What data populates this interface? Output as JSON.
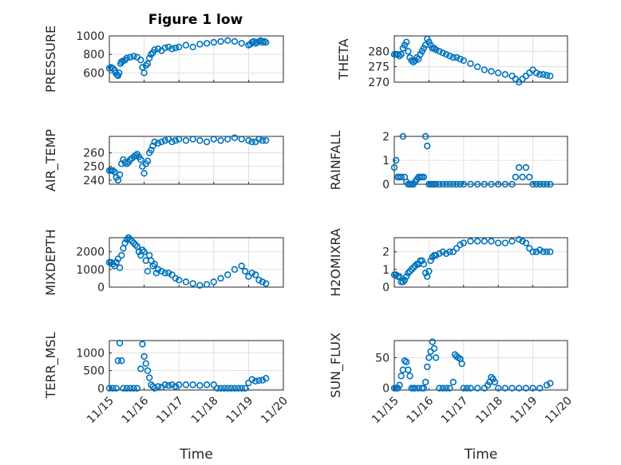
{
  "figure_title": "Figure 1 low",
  "chart_data": [
    {
      "type": "scatter",
      "ylabel": "PRESSURE",
      "xlim": [
        0,
        5
      ],
      "ylim": [
        500,
        1000
      ],
      "yticks": [
        600,
        800,
        1000
      ],
      "xticks_labels": [
        "",
        "",
        "",
        "",
        ""
      ],
      "xlabel": "",
      "x": [
        0.0,
        0.05,
        0.1,
        0.15,
        0.18,
        0.22,
        0.25,
        0.28,
        0.32,
        0.35,
        0.4,
        0.45,
        0.5,
        0.6,
        0.7,
        0.8,
        0.9,
        0.95,
        1.0,
        1.05,
        1.1,
        1.15,
        1.2,
        1.25,
        1.3,
        1.4,
        1.5,
        1.6,
        1.7,
        1.8,
        1.9,
        2.0,
        2.2,
        2.4,
        2.6,
        2.8,
        3.0,
        3.2,
        3.4,
        3.6,
        3.8,
        4.0,
        4.05,
        4.1,
        4.15,
        4.2,
        4.25,
        4.3,
        4.35,
        4.4,
        4.45,
        4.5
      ],
      "y": [
        650,
        660,
        650,
        630,
        600,
        580,
        570,
        600,
        700,
        720,
        730,
        740,
        760,
        770,
        780,
        770,
        740,
        660,
        600,
        680,
        700,
        760,
        800,
        820,
        850,
        860,
        840,
        870,
        880,
        860,
        870,
        880,
        900,
        880,
        910,
        920,
        930,
        940,
        950,
        940,
        920,
        900,
        910,
        930,
        940,
        920,
        930,
        940,
        950,
        930,
        940,
        930
      ]
    },
    {
      "type": "scatter",
      "ylabel": "THETA",
      "xlim": [
        0,
        5
      ],
      "ylim": [
        270,
        285
      ],
      "yticks": [
        270,
        275,
        280
      ],
      "xticks_labels": [
        "",
        "",
        "",
        "",
        ""
      ],
      "xlabel": "",
      "x": [
        0.0,
        0.05,
        0.1,
        0.15,
        0.2,
        0.25,
        0.3,
        0.35,
        0.4,
        0.45,
        0.5,
        0.55,
        0.6,
        0.65,
        0.7,
        0.75,
        0.8,
        0.85,
        0.9,
        0.95,
        1.0,
        1.05,
        1.1,
        1.15,
        1.2,
        1.3,
        1.4,
        1.5,
        1.6,
        1.7,
        1.8,
        1.9,
        2.0,
        2.2,
        2.4,
        2.6,
        2.8,
        3.0,
        3.2,
        3.4,
        3.5,
        3.6,
        3.7,
        3.8,
        3.9,
        4.0,
        4.1,
        4.2,
        4.3,
        4.4,
        4.5
      ],
      "y": [
        279,
        279,
        279,
        278.5,
        279,
        281,
        282,
        283,
        280,
        278,
        277,
        276.5,
        277,
        278,
        277.5,
        279,
        280,
        281,
        282,
        284,
        283,
        282,
        281,
        281,
        280.5,
        280,
        279.5,
        279,
        278.5,
        278,
        278,
        277.5,
        277,
        276,
        275,
        274,
        273.5,
        273,
        272.5,
        272,
        271,
        270,
        271,
        272,
        273,
        274,
        273,
        272.5,
        272.5,
        272.2,
        272
      ]
    },
    {
      "type": "scatter",
      "ylabel": "AIR_TEMP",
      "xlim": [
        0,
        5
      ],
      "ylim": [
        237,
        272
      ],
      "yticks": [
        240,
        250,
        260
      ],
      "xticks_labels": [
        "",
        "",
        "",
        "",
        ""
      ],
      "xlabel": "",
      "x": [
        0.0,
        0.05,
        0.1,
        0.15,
        0.2,
        0.25,
        0.3,
        0.35,
        0.4,
        0.45,
        0.5,
        0.55,
        0.6,
        0.65,
        0.7,
        0.75,
        0.8,
        0.85,
        0.9,
        0.95,
        1.0,
        1.05,
        1.1,
        1.15,
        1.2,
        1.25,
        1.3,
        1.4,
        1.5,
        1.6,
        1.7,
        1.8,
        1.9,
        2.0,
        2.2,
        2.4,
        2.6,
        2.8,
        3.0,
        3.2,
        3.4,
        3.6,
        3.8,
        4.0,
        4.1,
        4.2,
        4.3,
        4.4,
        4.5
      ],
      "y": [
        247,
        247,
        247,
        246,
        242,
        240,
        244,
        252,
        255,
        253,
        252,
        253,
        255,
        256,
        257,
        258,
        259,
        257,
        255,
        250,
        245,
        252,
        254,
        260,
        262,
        265,
        268,
        267,
        268,
        269,
        270,
        268,
        269,
        270,
        269,
        270,
        269,
        268,
        270,
        269,
        270,
        271,
        270,
        269,
        268,
        268,
        270,
        269,
        269
      ]
    },
    {
      "type": "scatter",
      "ylabel": "RAINFALL",
      "xlim": [
        0,
        5
      ],
      "ylim": [
        0,
        2
      ],
      "yticks": [
        0,
        1,
        2
      ],
      "xticks_labels": [
        "",
        "",
        "",
        "",
        ""
      ],
      "xlabel": "",
      "x": [
        0.0,
        0.05,
        0.1,
        0.15,
        0.2,
        0.25,
        0.3,
        0.35,
        0.4,
        0.45,
        0.5,
        0.55,
        0.6,
        0.65,
        0.7,
        0.75,
        0.8,
        0.85,
        0.9,
        0.95,
        1.0,
        1.05,
        1.1,
        1.15,
        1.2,
        1.3,
        1.4,
        1.5,
        1.6,
        1.7,
        1.8,
        1.9,
        2.0,
        2.2,
        2.4,
        2.6,
        2.8,
        3.0,
        3.2,
        3.4,
        3.5,
        3.6,
        3.7,
        3.8,
        3.9,
        4.0,
        4.1,
        4.2,
        4.3,
        4.4,
        4.5
      ],
      "y": [
        0.7,
        1.0,
        0.3,
        0.3,
        0.3,
        2.0,
        0.3,
        0.1,
        0.0,
        0.0,
        0.0,
        0.0,
        0.1,
        0.2,
        0.3,
        0.3,
        0.3,
        0.3,
        2.0,
        1.6,
        0.0,
        0.0,
        0.0,
        0.0,
        0.0,
        0.0,
        0.0,
        0.0,
        0.0,
        0.0,
        0.0,
        0.0,
        0.0,
        0.0,
        0.0,
        0.0,
        0.0,
        0.0,
        0.0,
        0.0,
        0.3,
        0.7,
        0.3,
        0.7,
        0.3,
        0.0,
        0.0,
        0.0,
        0.0,
        0.0,
        0.0
      ]
    },
    {
      "type": "scatter",
      "ylabel": "MIXDEPTH",
      "xlim": [
        0,
        5
      ],
      "ylim": [
        0,
        2800
      ],
      "yticks": [
        0,
        1000,
        2000
      ],
      "xticks_labels": [
        "",
        "",
        "",
        "",
        ""
      ],
      "xlabel": "",
      "x": [
        0.0,
        0.05,
        0.1,
        0.15,
        0.2,
        0.25,
        0.3,
        0.35,
        0.4,
        0.45,
        0.5,
        0.55,
        0.6,
        0.65,
        0.7,
        0.75,
        0.8,
        0.85,
        0.9,
        0.95,
        1.0,
        1.05,
        1.1,
        1.15,
        1.2,
        1.25,
        1.3,
        1.35,
        1.4,
        1.5,
        1.6,
        1.7,
        1.8,
        1.9,
        2.0,
        2.2,
        2.4,
        2.6,
        2.8,
        3.0,
        3.2,
        3.4,
        3.6,
        3.8,
        3.9,
        4.0,
        4.1,
        4.2,
        4.3,
        4.4,
        4.5
      ],
      "y": [
        1400,
        1400,
        1300,
        1200,
        1400,
        1600,
        1100,
        1800,
        2200,
        2500,
        2700,
        2800,
        2700,
        2600,
        2500,
        2400,
        2300,
        2000,
        1800,
        2100,
        2000,
        1500,
        900,
        1800,
        1500,
        1200,
        1300,
        800,
        1000,
        900,
        800,
        800,
        700,
        500,
        400,
        300,
        200,
        100,
        150,
        300,
        500,
        700,
        1000,
        1200,
        900,
        600,
        800,
        700,
        400,
        300,
        200
      ]
    },
    {
      "type": "scatter",
      "ylabel": "H2OMIXRA",
      "xlim": [
        0,
        5
      ],
      "ylim": [
        0,
        2.8
      ],
      "yticks": [
        0,
        1,
        2
      ],
      "xticks_labels": [
        "",
        "",
        "",
        "",
        ""
      ],
      "xlabel": "",
      "x": [
        0.0,
        0.05,
        0.1,
        0.15,
        0.2,
        0.25,
        0.3,
        0.35,
        0.4,
        0.45,
        0.5,
        0.55,
        0.6,
        0.65,
        0.7,
        0.75,
        0.8,
        0.85,
        0.9,
        0.95,
        1.0,
        1.05,
        1.1,
        1.15,
        1.2,
        1.3,
        1.4,
        1.5,
        1.6,
        1.7,
        1.8,
        1.9,
        2.0,
        2.2,
        2.4,
        2.6,
        2.8,
        3.0,
        3.2,
        3.4,
        3.6,
        3.7,
        3.8,
        3.9,
        4.0,
        4.1,
        4.2,
        4.3,
        4.4,
        4.5
      ],
      "y": [
        0.7,
        0.7,
        0.6,
        0.6,
        0.3,
        0.3,
        0.4,
        0.6,
        0.8,
        0.9,
        1.0,
        1.1,
        1.2,
        1.3,
        1.3,
        1.5,
        1.5,
        1.3,
        0.8,
        0.6,
        0.9,
        1.5,
        1.7,
        1.8,
        1.8,
        1.9,
        2.0,
        1.9,
        2.0,
        2.0,
        2.2,
        2.4,
        2.5,
        2.6,
        2.6,
        2.6,
        2.6,
        2.5,
        2.5,
        2.6,
        2.7,
        2.6,
        2.5,
        2.2,
        2.0,
        2.0,
        2.1,
        2.0,
        2.0,
        2.0
      ]
    },
    {
      "type": "scatter",
      "ylabel": "TERR_MSL",
      "xlim": [
        0,
        5
      ],
      "ylim": [
        -50,
        1350
      ],
      "yticks": [
        0,
        500,
        1000
      ],
      "xticks_labels": [
        "11/15",
        "11/16",
        "11/17",
        "11/18",
        "11/19",
        "11/20"
      ],
      "xlabel": "Time",
      "x": [
        0.0,
        0.1,
        0.2,
        0.25,
        0.3,
        0.35,
        0.4,
        0.5,
        0.6,
        0.7,
        0.8,
        0.9,
        0.95,
        1.0,
        1.05,
        1.1,
        1.15,
        1.2,
        1.25,
        1.3,
        1.4,
        1.5,
        1.6,
        1.7,
        1.8,
        1.9,
        2.0,
        2.2,
        2.4,
        2.6,
        2.8,
        3.0,
        3.1,
        3.2,
        3.3,
        3.4,
        3.5,
        3.6,
        3.7,
        3.8,
        3.9,
        4.0,
        4.1,
        4.2,
        4.3,
        4.4,
        4.5
      ],
      "y": [
        0,
        0,
        0,
        780,
        1280,
        780,
        0,
        0,
        0,
        0,
        0,
        550,
        1250,
        900,
        700,
        500,
        300,
        100,
        50,
        0,
        50,
        30,
        100,
        80,
        100,
        50,
        100,
        100,
        100,
        80,
        100,
        100,
        0,
        0,
        0,
        0,
        0,
        0,
        0,
        0,
        0,
        150,
        250,
        200,
        220,
        230,
        280
      ]
    },
    {
      "type": "scatter",
      "ylabel": "SUN_FLUX",
      "xlim": [
        0,
        5
      ],
      "ylim": [
        -3,
        78
      ],
      "yticks": [
        0,
        50
      ],
      "xticks_labels": [
        "11/15",
        "11/16",
        "11/17",
        "11/18",
        "11/19",
        "11/20"
      ],
      "xlabel": "Time",
      "x": [
        0.0,
        0.05,
        0.1,
        0.15,
        0.2,
        0.25,
        0.3,
        0.35,
        0.4,
        0.45,
        0.5,
        0.55,
        0.6,
        0.7,
        0.8,
        0.85,
        0.9,
        0.95,
        1.0,
        1.05,
        1.1,
        1.15,
        1.2,
        1.3,
        1.4,
        1.5,
        1.6,
        1.7,
        1.75,
        1.8,
        1.85,
        1.9,
        1.95,
        2.0,
        2.1,
        2.2,
        2.4,
        2.6,
        2.7,
        2.75,
        2.8,
        2.85,
        2.9,
        3.0,
        3.2,
        3.4,
        3.6,
        3.8,
        4.0,
        4.2,
        4.4,
        4.5
      ],
      "y": [
        0,
        0,
        0,
        5,
        20,
        30,
        45,
        43,
        30,
        20,
        0,
        0,
        0,
        0,
        0,
        0,
        10,
        35,
        50,
        60,
        76,
        65,
        50,
        0,
        0,
        0,
        0,
        10,
        55,
        52,
        50,
        48,
        40,
        0,
        0,
        0,
        0,
        0,
        5,
        10,
        18,
        15,
        10,
        0,
        0,
        0,
        0,
        0,
        0,
        0,
        5,
        8
      ]
    }
  ]
}
